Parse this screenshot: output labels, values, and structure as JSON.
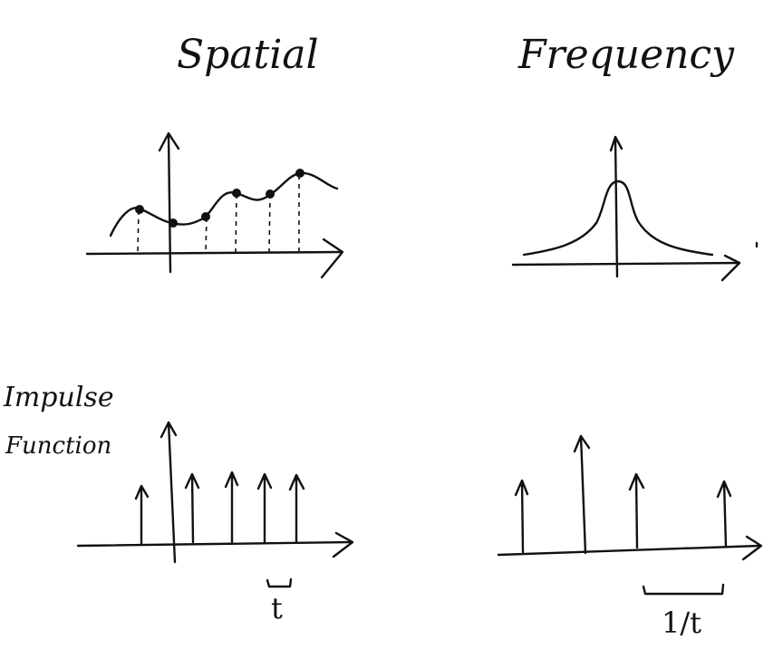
{
  "labels": {
    "spatial_title": "Spatial",
    "frequency_title": "Frequency",
    "impulse_line1": "Impulse",
    "impulse_line2": "Function",
    "period_label": "t",
    "freq_period_label": "1/t"
  },
  "colors": {
    "ink": "#111111",
    "paper": "#ffffff"
  }
}
